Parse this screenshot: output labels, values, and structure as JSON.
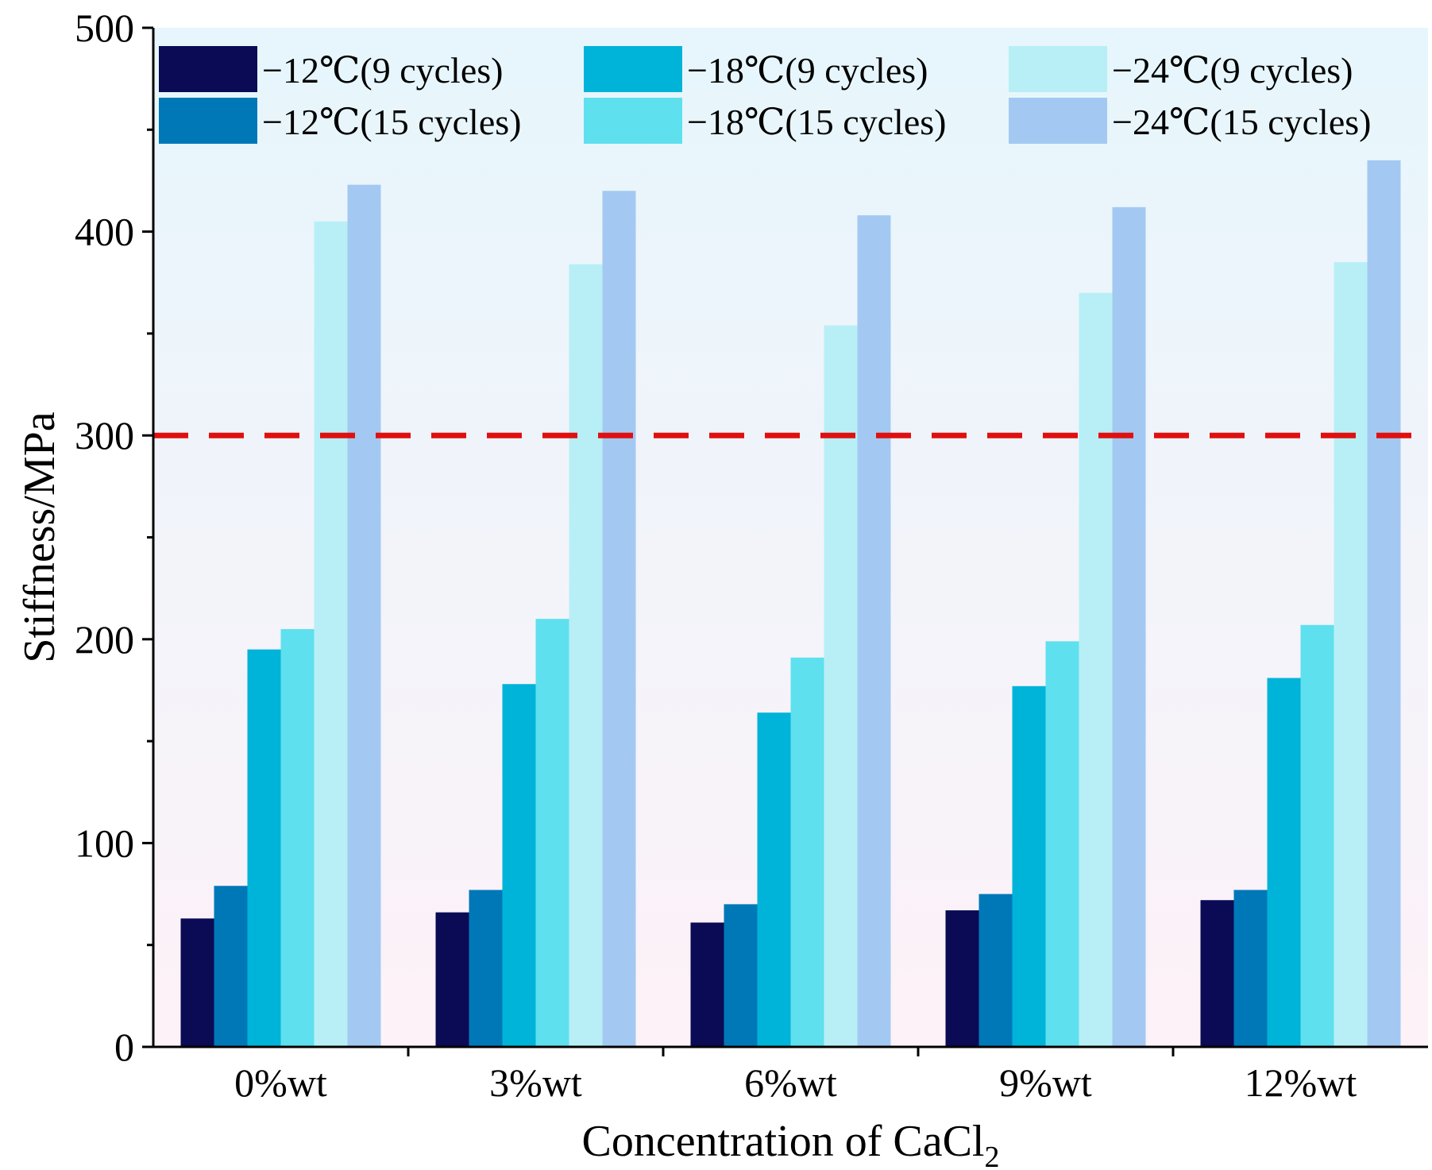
{
  "chart_data": {
    "type": "bar",
    "title": "",
    "xlabel_prefix": "Concentration of CaCl",
    "xlabel_subscript": "2",
    "ylabel": "Stiffness/MPa",
    "ylim": [
      0,
      500
    ],
    "yticks": [
      0,
      100,
      200,
      300,
      400,
      500
    ],
    "categories": [
      "0%wt",
      "3%wt",
      "6%wt",
      "9%wt",
      "12%wt"
    ],
    "series": [
      {
        "name": "−12℃(9 cycles)",
        "color": "#0b0a55",
        "values": [
          63,
          66,
          61,
          67,
          72
        ]
      },
      {
        "name": "−12℃(15 cycles)",
        "color": "#0078b8",
        "values": [
          79,
          77,
          70,
          75,
          77
        ]
      },
      {
        "name": "−18℃(9 cycles)",
        "color": "#00b3d9",
        "values": [
          195,
          178,
          164,
          177,
          181
        ]
      },
      {
        "name": "−18℃(15 cycles)",
        "color": "#5fe0ee",
        "values": [
          205,
          210,
          191,
          199,
          207
        ]
      },
      {
        "name": "−24℃(9 cycles)",
        "color": "#b8eff6",
        "values": [
          405,
          384,
          354,
          370,
          385
        ]
      },
      {
        "name": "−24℃(15 cycles)",
        "color": "#a3c9f2",
        "values": [
          423,
          420,
          408,
          412,
          435
        ]
      }
    ],
    "reference_line": {
      "value": 300,
      "color": "#e01010",
      "style": "dashed"
    },
    "legend_position": "top",
    "background_gradient": [
      "#e6f6fc",
      "#fdf2f8"
    ]
  }
}
